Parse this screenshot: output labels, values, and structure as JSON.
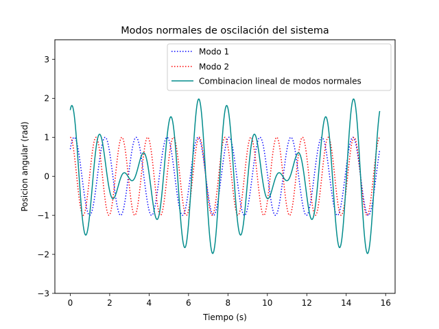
{
  "chart_data": {
    "type": "line",
    "title": "Modos normales de oscilación del sistema",
    "xlabel": "Tiempo (s)",
    "ylabel": "Posicion angular (rad)",
    "xlim": [
      -0.78,
      16.48
    ],
    "ylim": [
      -3,
      3.5
    ],
    "xticks": [
      0,
      2,
      4,
      6,
      8,
      10,
      12,
      14,
      16
    ],
    "yticks": [
      -3,
      -2,
      -1,
      0,
      1,
      2,
      3
    ],
    "grid": false,
    "legend_position": "upper-center",
    "t_range": [
      0,
      15.7
    ],
    "series": [
      {
        "name": "Modo 1",
        "style": "dotted",
        "color": "#0000ff",
        "function": "cos",
        "amplitude": 1.0,
        "angular_frequency": 4.0,
        "phase": -0.8
      },
      {
        "name": "Modo 2",
        "style": "dotted",
        "color": "#ff0000",
        "function": "cos",
        "amplitude": 1.0,
        "angular_frequency": 4.8,
        "phase": 0.0
      },
      {
        "name": "Combinacion lineal de modos normales",
        "style": "solid",
        "color": "#008b8b",
        "function": "sum",
        "components": [
          "Modo 1",
          "Modo 2"
        ]
      }
    ]
  }
}
